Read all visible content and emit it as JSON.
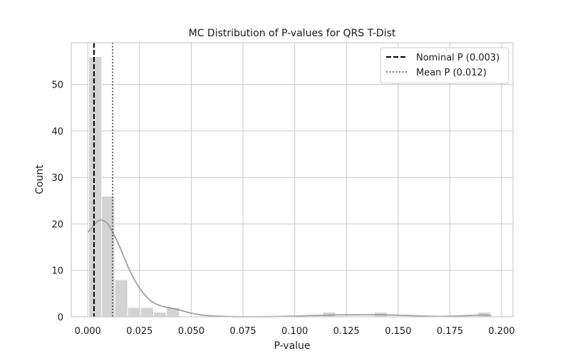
{
  "chart_data": {
    "type": "bar",
    "title": "MC Distribution of P-values for QRS T-Dist",
    "xlabel": "P-value",
    "ylabel": "Count",
    "xlim": [
      -0.008,
      0.2055
    ],
    "ylim": [
      0,
      59
    ],
    "xticks": [
      0.0,
      0.025,
      0.05,
      0.075,
      0.1,
      0.125,
      0.15,
      0.175,
      0.2
    ],
    "xtick_labels": [
      "0.000",
      "0.025",
      "0.050",
      "0.075",
      "0.100",
      "0.125",
      "0.150",
      "0.175",
      "0.200"
    ],
    "yticks": [
      0,
      10,
      20,
      30,
      40,
      50
    ],
    "ytick_labels": [
      "0",
      "10",
      "20",
      "30",
      "40",
      "50"
    ],
    "grid": true,
    "bin_width": 0.00625,
    "histogram": {
      "bin_starts": [
        0.0005,
        0.00675,
        0.013,
        0.01925,
        0.0255,
        0.03175,
        0.038,
        0.04425,
        0.1135,
        0.1385,
        0.1885
      ],
      "counts": [
        56,
        26,
        8,
        2,
        2,
        1,
        2,
        0,
        1,
        1,
        1
      ]
    },
    "kde": {
      "x": [
        0.0,
        0.002,
        0.004,
        0.006,
        0.008,
        0.01,
        0.012,
        0.015,
        0.018,
        0.021,
        0.025,
        0.03,
        0.035,
        0.04,
        0.045,
        0.05,
        0.055,
        0.06,
        0.07,
        0.08,
        0.09,
        0.1,
        0.11,
        0.12,
        0.13,
        0.14,
        0.15,
        0.16,
        0.17,
        0.18,
        0.19,
        0.195
      ],
      "y": [
        18.2,
        19.2,
        20.3,
        20.8,
        20.6,
        19.8,
        18.2,
        15.5,
        12.3,
        9.3,
        6.2,
        3.6,
        2.4,
        1.9,
        1.4,
        0.8,
        0.4,
        0.2,
        0.05,
        0.02,
        0.05,
        0.15,
        0.3,
        0.4,
        0.45,
        0.45,
        0.35,
        0.2,
        0.1,
        0.2,
        0.4,
        0.3
      ]
    },
    "lines": [
      {
        "name": "Nominal P (0.003)",
        "x": 0.003,
        "style": "dashed",
        "color": "#000000"
      },
      {
        "name": "Mean P (0.012)",
        "x": 0.012,
        "style": "dotted",
        "color": "#555555"
      }
    ],
    "legend_placement": "top-right",
    "colors": {
      "bar": "#d3d3d3",
      "kde": "#a0a0a0",
      "grid": "#cccccc",
      "axes": "#cccccc"
    }
  }
}
